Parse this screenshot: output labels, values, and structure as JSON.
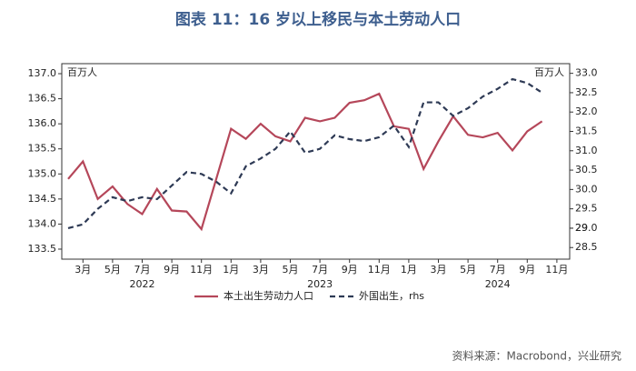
{
  "chart_data": {
    "type": "line",
    "title": "图表 11：16 岁以上移民与本土劳动人口",
    "y_unit": "百万人",
    "y2_unit": "百万人",
    "source": "资料来源：Macrobond，兴业研究",
    "categories": [
      null,
      "3月",
      null,
      "5月",
      null,
      "7月",
      null,
      "9月",
      null,
      "11月",
      null,
      "1月",
      null,
      "3月",
      null,
      "5月",
      null,
      "7月",
      null,
      "9月",
      null,
      "11月",
      null,
      "1月",
      null,
      "3月",
      null,
      "5月",
      null,
      "7月",
      null,
      "9月",
      null,
      "11月"
    ],
    "year_labels": [
      {
        "label": "2022",
        "index": 5
      },
      {
        "label": "2023",
        "index": 17
      },
      {
        "label": "2024",
        "index": 29
      }
    ],
    "series": [
      {
        "name": "本土出生劳动力人口",
        "color": "#b5475a",
        "dash": false,
        "values": [
          134.9,
          135.25,
          134.5,
          134.75,
          134.4,
          134.2,
          134.7,
          134.27,
          134.25,
          133.9,
          134.9,
          135.9,
          135.7,
          136.0,
          135.75,
          135.65,
          136.12,
          136.05,
          136.12,
          136.42,
          136.47,
          136.6,
          135.95,
          135.9,
          135.1,
          135.65,
          136.15,
          135.78,
          135.73,
          135.82,
          135.47,
          135.85,
          136.05,
          null
        ]
      },
      {
        "name": "外国出生，rhs",
        "color": "#2e3a55",
        "dash": true,
        "axis": "y2",
        "values": [
          29.0,
          29.1,
          29.5,
          29.8,
          29.7,
          29.8,
          29.75,
          30.1,
          30.45,
          30.4,
          30.2,
          29.9,
          30.6,
          30.8,
          31.05,
          31.5,
          30.95,
          31.05,
          31.4,
          31.3,
          31.25,
          31.35,
          31.65,
          31.1,
          32.25,
          32.25,
          31.9,
          32.1,
          32.4,
          32.6,
          32.85,
          32.75,
          32.5,
          null
        ]
      }
    ],
    "ylim": [
      133.3,
      137.2
    ],
    "yticks": [
      {
        "value": 133.5,
        "label": "133.5"
      },
      {
        "value": 134,
        "label": "134.0"
      },
      {
        "value": 134.5,
        "label": "134.5"
      },
      {
        "value": 135,
        "label": "135.0"
      },
      {
        "value": 135.5,
        "label": "135.5"
      },
      {
        "value": 136,
        "label": "136.0"
      },
      {
        "value": 136.5,
        "label": "136.5"
      },
      {
        "value": 137,
        "label": "137.0"
      }
    ],
    "y2lim": [
      28.2,
      33.25
    ],
    "y2ticks": [
      28.5,
      29,
      {
        "value": 29,
        "label": "29.0"
      },
      29.5,
      {
        "value": 30,
        "label": "30.0"
      },
      30.5,
      {
        "value": 31,
        "label": "31.0"
      },
      31.5,
      {
        "value": 32,
        "label": "32.0"
      },
      32.5,
      {
        "value": 33,
        "label": "33.0"
      }
    ]
  }
}
